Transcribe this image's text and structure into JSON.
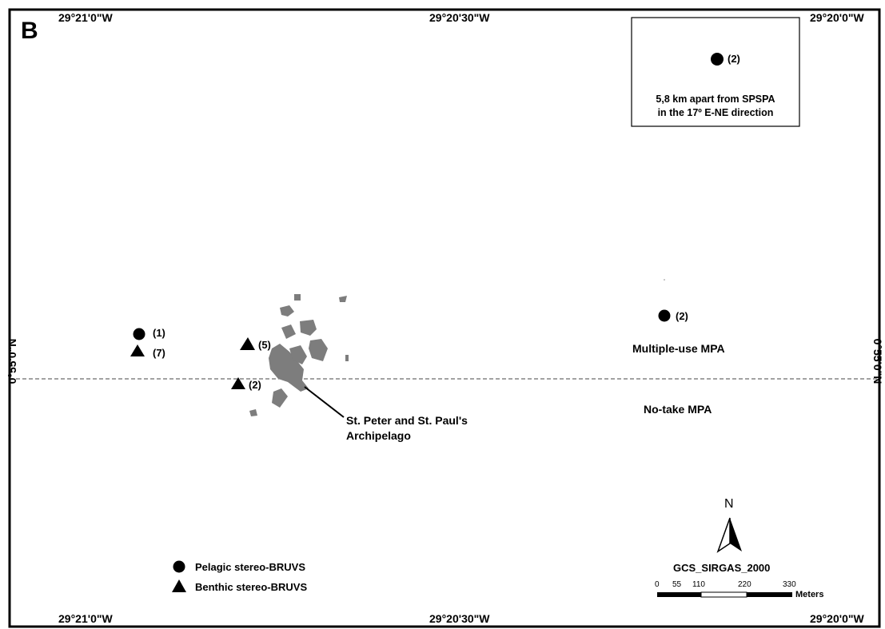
{
  "panel_letter": "B",
  "top_coords": [
    "29°21'0\"W",
    "29°20'30\"W",
    "29°20'0\"W"
  ],
  "bottom_coords": [
    "29°21'0\"W",
    "29°20'30\"W",
    "29°20'0\"W"
  ],
  "left_lat": "0°55'0\"N",
  "right_lat": "0°55'0\"N",
  "inset": {
    "point_count": "(2)",
    "caption_line1": "5,8 km apart from SPSPA",
    "caption_line2": "in the 17º E-NE direction"
  },
  "markers": {
    "pelagic_left_count": "(1)",
    "benthic_left_count": "(7)",
    "benthic_center_upper_count": "(5)",
    "benthic_center_lower_count": "(2)",
    "pelagic_right_count": "(2)"
  },
  "zones": {
    "multiple_use": "Multiple-use MPA",
    "no_take": "No-take MPA"
  },
  "archipelago": {
    "line1": "St. Peter and St. Paul's",
    "line2": "Archipelago"
  },
  "legend": {
    "pelagic": "Pelagic stereo-BRUVS",
    "benthic": "Benthic stereo-BRUVS"
  },
  "north_label": "N",
  "crs": "GCS_SIRGAS_2000",
  "scalebar": {
    "ticks": [
      "0",
      "55",
      "110",
      "220",
      "330"
    ],
    "unit": "Meters"
  }
}
